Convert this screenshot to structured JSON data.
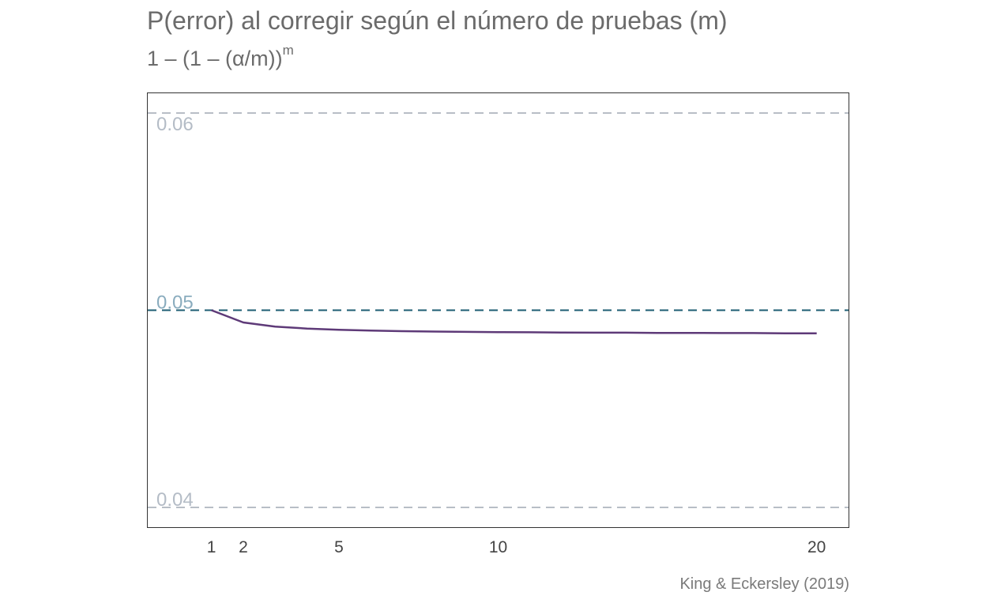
{
  "chart_data": {
    "type": "line",
    "title": "P(error) al corregir según el número de pruebas (m)",
    "subtitle": "1 – (1 – (α/m))^m",
    "caption": "King & Eckersley (2019)",
    "x_ticks": [
      1,
      2,
      5,
      10,
      20
    ],
    "x_tick_labels": [
      "1",
      "2",
      "5",
      "10",
      "20"
    ],
    "y_ticks": [
      0.04,
      0.05,
      0.06
    ],
    "y_tick_labels": [
      "0.04",
      "0.05",
      "0.06"
    ],
    "xlim": [
      -1,
      21
    ],
    "ylim": [
      0.039,
      0.061
    ],
    "reference_line": 0.05,
    "grid": "horizontal dashed",
    "series": [
      {
        "x": [
          1,
          2,
          3,
          4,
          5,
          6,
          7,
          8,
          9,
          10,
          11,
          12,
          13,
          14,
          15,
          16,
          17,
          18,
          19,
          20
        ],
        "values": [
          0.05,
          0.04938,
          0.04917,
          0.04907,
          0.04901,
          0.04897,
          0.04894,
          0.04892,
          0.0489,
          0.04889,
          0.04888,
          0.04887,
          0.04886,
          0.04886,
          0.04885,
          0.04885,
          0.04884,
          0.04884,
          0.04883,
          0.04883
        ]
      }
    ],
    "colors": {
      "line": "#5e3a78",
      "reference": "#1c5c72",
      "grid": "#b8bec6",
      "ref_tick_label": "#8aacbe",
      "tick_label": "#b4bcc6",
      "axis_text": "#444444"
    }
  }
}
